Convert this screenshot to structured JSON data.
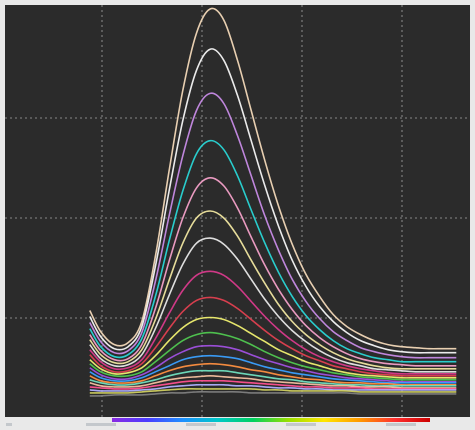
{
  "screen": {
    "background": "#2b2b2b",
    "frame_color": "#e9e9e9",
    "grid_color": "#cfcfcf"
  },
  "chart_data": {
    "type": "line",
    "title": "",
    "xlabel": "",
    "ylabel": "",
    "grid": true,
    "legend": "none",
    "xlim": [
      380,
      720
    ],
    "ylim": [
      0,
      4.1
    ],
    "x_tick_labels": [
      "",
      "",
      "",
      "",
      ""
    ],
    "x": [
      442,
      450,
      460,
      470,
      480,
      490,
      500,
      510,
      520,
      530,
      540,
      550,
      560,
      570,
      580,
      590,
      600,
      610,
      620,
      630,
      640,
      650,
      660,
      670,
      680,
      690,
      700,
      710
    ],
    "spectrum_bar": {
      "colors": [
        "#8a2be2",
        "#4b3cff",
        "#1e90ff",
        "#00c8c8",
        "#00d060",
        "#9be000",
        "#ffe600",
        "#ff9a00",
        "#ff3030",
        "#cc0000"
      ]
    },
    "series": [
      {
        "color": "#f2d8b8",
        "values": [
          1.06,
          0.85,
          0.72,
          0.74,
          0.95,
          1.6,
          2.45,
          3.25,
          3.82,
          4.06,
          3.95,
          3.55,
          3.05,
          2.55,
          2.1,
          1.72,
          1.42,
          1.2,
          1.02,
          0.9,
          0.82,
          0.76,
          0.72,
          0.7,
          0.69,
          0.68,
          0.68,
          0.68
        ]
      },
      {
        "color": "#f6f6f6",
        "values": [
          1.0,
          0.8,
          0.68,
          0.7,
          0.9,
          1.5,
          2.25,
          2.95,
          3.45,
          3.66,
          3.55,
          3.2,
          2.75,
          2.3,
          1.9,
          1.56,
          1.3,
          1.1,
          0.95,
          0.84,
          0.76,
          0.71,
          0.67,
          0.65,
          0.64,
          0.64,
          0.64,
          0.64
        ]
      },
      {
        "color": "#c78be6",
        "values": [
          0.94,
          0.75,
          0.64,
          0.66,
          0.84,
          1.35,
          2.0,
          2.6,
          3.05,
          3.22,
          3.12,
          2.8,
          2.4,
          2.0,
          1.66,
          1.37,
          1.15,
          0.98,
          0.85,
          0.76,
          0.69,
          0.65,
          0.62,
          0.6,
          0.59,
          0.59,
          0.59,
          0.59
        ]
      },
      {
        "color": "#29d6d6",
        "values": [
          0.88,
          0.7,
          0.6,
          0.62,
          0.78,
          1.2,
          1.75,
          2.25,
          2.62,
          2.75,
          2.66,
          2.4,
          2.06,
          1.73,
          1.44,
          1.2,
          1.01,
          0.87,
          0.76,
          0.68,
          0.63,
          0.59,
          0.57,
          0.55,
          0.55,
          0.55,
          0.55,
          0.55
        ]
      },
      {
        "color": "#f3a0c8",
        "values": [
          0.82,
          0.66,
          0.57,
          0.58,
          0.72,
          1.08,
          1.55,
          1.98,
          2.28,
          2.38,
          2.3,
          2.08,
          1.79,
          1.51,
          1.27,
          1.07,
          0.91,
          0.79,
          0.7,
          0.63,
          0.58,
          0.55,
          0.53,
          0.52,
          0.51,
          0.51,
          0.51,
          0.51
        ]
      },
      {
        "color": "#f0e6a0",
        "values": [
          0.77,
          0.62,
          0.54,
          0.55,
          0.67,
          0.97,
          1.36,
          1.73,
          1.98,
          2.05,
          1.98,
          1.8,
          1.56,
          1.33,
          1.12,
          0.95,
          0.82,
          0.72,
          0.64,
          0.58,
          0.54,
          0.51,
          0.49,
          0.48,
          0.48,
          0.48,
          0.48,
          0.48
        ]
      },
      {
        "color": "#e8e8e8",
        "values": [
          0.72,
          0.58,
          0.51,
          0.52,
          0.62,
          0.88,
          1.21,
          1.52,
          1.73,
          1.78,
          1.72,
          1.57,
          1.37,
          1.17,
          1.0,
          0.86,
          0.75,
          0.66,
          0.59,
          0.54,
          0.51,
          0.48,
          0.47,
          0.46,
          0.45,
          0.45,
          0.45,
          0.45
        ]
      },
      {
        "color": "#d93a8c",
        "values": [
          0.67,
          0.55,
          0.48,
          0.49,
          0.57,
          0.78,
          1.03,
          1.26,
          1.41,
          1.45,
          1.41,
          1.3,
          1.15,
          1.0,
          0.87,
          0.76,
          0.67,
          0.6,
          0.55,
          0.51,
          0.48,
          0.46,
          0.44,
          0.43,
          0.43,
          0.43,
          0.43,
          0.43
        ]
      },
      {
        "color": "#e04050",
        "values": [
          0.62,
          0.51,
          0.45,
          0.46,
          0.53,
          0.69,
          0.88,
          1.05,
          1.16,
          1.19,
          1.16,
          1.08,
          0.97,
          0.86,
          0.76,
          0.68,
          0.61,
          0.56,
          0.51,
          0.48,
          0.45,
          0.43,
          0.42,
          0.41,
          0.41,
          0.41,
          0.41,
          0.41
        ]
      },
      {
        "color": "#f0f070",
        "values": [
          0.57,
          0.48,
          0.43,
          0.44,
          0.49,
          0.61,
          0.76,
          0.89,
          0.97,
          0.99,
          0.97,
          0.91,
          0.83,
          0.75,
          0.67,
          0.61,
          0.55,
          0.51,
          0.47,
          0.44,
          0.42,
          0.41,
          0.4,
          0.39,
          0.39,
          0.39,
          0.39,
          0.39
        ]
      },
      {
        "color": "#50c850",
        "values": [
          0.53,
          0.45,
          0.41,
          0.41,
          0.45,
          0.55,
          0.66,
          0.76,
          0.82,
          0.84,
          0.82,
          0.78,
          0.72,
          0.65,
          0.59,
          0.54,
          0.5,
          0.47,
          0.44,
          0.42,
          0.4,
          0.39,
          0.38,
          0.37,
          0.37,
          0.37,
          0.37,
          0.37
        ]
      },
      {
        "color": "#a050e0",
        "values": [
          0.49,
          0.42,
          0.38,
          0.38,
          0.42,
          0.49,
          0.58,
          0.65,
          0.7,
          0.71,
          0.7,
          0.67,
          0.62,
          0.57,
          0.53,
          0.49,
          0.46,
          0.43,
          0.41,
          0.39,
          0.38,
          0.37,
          0.36,
          0.35,
          0.35,
          0.35,
          0.35,
          0.35
        ]
      },
      {
        "color": "#3aa0ff",
        "values": [
          0.45,
          0.39,
          0.36,
          0.36,
          0.39,
          0.45,
          0.51,
          0.57,
          0.6,
          0.61,
          0.6,
          0.58,
          0.54,
          0.5,
          0.47,
          0.44,
          0.42,
          0.4,
          0.38,
          0.37,
          0.36,
          0.35,
          0.34,
          0.34,
          0.34,
          0.34,
          0.34,
          0.34
        ]
      },
      {
        "color": "#ff9040",
        "values": [
          0.41,
          0.36,
          0.34,
          0.34,
          0.36,
          0.41,
          0.46,
          0.5,
          0.52,
          0.53,
          0.52,
          0.5,
          0.47,
          0.45,
          0.42,
          0.4,
          0.38,
          0.37,
          0.35,
          0.34,
          0.34,
          0.33,
          0.33,
          0.32,
          0.32,
          0.32,
          0.32,
          0.32
        ]
      },
      {
        "color": "#70e0c0",
        "values": [
          0.37,
          0.34,
          0.32,
          0.32,
          0.34,
          0.37,
          0.41,
          0.44,
          0.46,
          0.46,
          0.46,
          0.44,
          0.42,
          0.4,
          0.38,
          0.37,
          0.35,
          0.34,
          0.33,
          0.32,
          0.32,
          0.31,
          0.31,
          0.31,
          0.31,
          0.31,
          0.31,
          0.31
        ]
      },
      {
        "color": "#f4c0a0",
        "values": [
          0.34,
          0.31,
          0.3,
          0.3,
          0.31,
          0.34,
          0.37,
          0.39,
          0.4,
          0.41,
          0.4,
          0.39,
          0.38,
          0.36,
          0.35,
          0.34,
          0.33,
          0.32,
          0.31,
          0.31,
          0.3,
          0.3,
          0.3,
          0.29,
          0.29,
          0.29,
          0.29,
          0.29
        ]
      },
      {
        "color": "#ff5090",
        "values": [
          0.3,
          0.29,
          0.28,
          0.28,
          0.29,
          0.31,
          0.33,
          0.35,
          0.36,
          0.36,
          0.36,
          0.35,
          0.34,
          0.33,
          0.32,
          0.31,
          0.3,
          0.3,
          0.29,
          0.29,
          0.29,
          0.28,
          0.28,
          0.28,
          0.28,
          0.28,
          0.28,
          0.28
        ]
      },
      {
        "color": "#b0b0ff",
        "values": [
          0.27,
          0.26,
          0.26,
          0.26,
          0.27,
          0.28,
          0.3,
          0.31,
          0.32,
          0.32,
          0.32,
          0.31,
          0.31,
          0.3,
          0.29,
          0.29,
          0.28,
          0.28,
          0.27,
          0.27,
          0.27,
          0.27,
          0.27,
          0.27,
          0.27,
          0.27,
          0.27,
          0.27
        ]
      },
      {
        "color": "#d0d060",
        "values": [
          0.24,
          0.24,
          0.24,
          0.24,
          0.25,
          0.26,
          0.27,
          0.28,
          0.28,
          0.28,
          0.28,
          0.28,
          0.28,
          0.27,
          0.27,
          0.26,
          0.26,
          0.26,
          0.26,
          0.26,
          0.25,
          0.25,
          0.25,
          0.25,
          0.25,
          0.25,
          0.25,
          0.25
        ]
      },
      {
        "color": "#808080",
        "values": [
          0.21,
          0.21,
          0.22,
          0.22,
          0.22,
          0.23,
          0.24,
          0.24,
          0.25,
          0.25,
          0.25,
          0.25,
          0.24,
          0.24,
          0.24,
          0.24,
          0.24,
          0.24,
          0.24,
          0.24,
          0.23,
          0.23,
          0.23,
          0.23,
          0.23,
          0.23,
          0.23,
          0.23
        ]
      }
    ]
  }
}
